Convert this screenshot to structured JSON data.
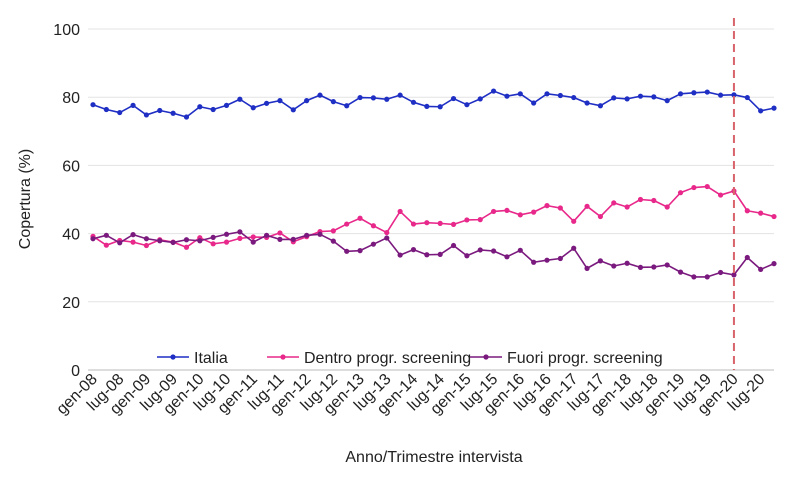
{
  "chart_data": {
    "type": "line",
    "xlabel": "Anno/Trimestre intervista",
    "ylabel": "Copertura (%)",
    "ylim": [
      0,
      100
    ],
    "yticks": [
      0,
      20,
      40,
      60,
      80,
      100
    ],
    "grid": true,
    "legend_position": "bottom-center",
    "x": [
      "gen-08",
      "apr-08",
      "lug-08",
      "ott-08",
      "gen-09",
      "apr-09",
      "lug-09",
      "ott-09",
      "gen-10",
      "apr-10",
      "lug-10",
      "ott-10",
      "gen-11",
      "apr-11",
      "lug-11",
      "ott-11",
      "gen-12",
      "apr-12",
      "lug-12",
      "ott-12",
      "gen-13",
      "apr-13",
      "lug-13",
      "ott-13",
      "gen-14",
      "apr-14",
      "lug-14",
      "ott-14",
      "gen-15",
      "apr-15",
      "lug-15",
      "ott-15",
      "gen-16",
      "apr-16",
      "lug-16",
      "ott-16",
      "gen-17",
      "apr-17",
      "lug-17",
      "ott-17",
      "gen-18",
      "apr-18",
      "lug-18",
      "ott-18",
      "gen-19",
      "apr-19",
      "lug-19",
      "ott-19",
      "gen-20",
      "apr-20",
      "lug-20",
      "ott-20"
    ],
    "xtick_labels": [
      "gen-08",
      "lug-08",
      "gen-09",
      "lug-09",
      "gen-10",
      "lug-10",
      "gen-11",
      "lug-11",
      "gen-12",
      "lug-12",
      "gen-13",
      "lug-13",
      "gen-14",
      "lug-14",
      "gen-15",
      "lug-15",
      "gen-16",
      "lug-16",
      "gen-17",
      "lug-17",
      "gen-18",
      "lug-18",
      "gen-19",
      "lug-19",
      "gen-20",
      "lug-20"
    ],
    "vline": {
      "x": "gen-20",
      "color": "#d9636b",
      "style": "dashed"
    },
    "series": [
      {
        "name": "Italia",
        "color": "#1f2fc4",
        "values": [
          77.8,
          76.4,
          75.5,
          77.6,
          74.8,
          76.1,
          75.3,
          74.2,
          77.2,
          76.4,
          77.6,
          79.4,
          76.9,
          78.2,
          79.0,
          76.3,
          79.0,
          80.6,
          78.7,
          77.5,
          79.9,
          79.8,
          79.4,
          80.6,
          78.5,
          77.3,
          77.2,
          79.6,
          77.8,
          79.5,
          81.8,
          80.3,
          81.0,
          78.3,
          81.0,
          80.5,
          79.9,
          78.3,
          77.5,
          79.8,
          79.5,
          80.3,
          80.1,
          79.0,
          81.0,
          81.3,
          81.5,
          80.6,
          80.7,
          79.9,
          76.0,
          76.8
        ]
      },
      {
        "name": "Dentro progr. screening",
        "color": "#e8288a",
        "values": [
          39.2,
          36.6,
          38.0,
          37.5,
          36.5,
          38.2,
          37.5,
          36.0,
          38.8,
          37.0,
          37.5,
          38.6,
          39.0,
          38.9,
          40.2,
          37.6,
          39.1,
          40.6,
          40.8,
          42.8,
          44.5,
          42.3,
          40.3,
          46.5,
          42.8,
          43.2,
          43.0,
          42.7,
          44.0,
          44.1,
          46.5,
          46.8,
          45.5,
          46.3,
          48.2,
          47.5,
          43.6,
          48.0,
          45.0,
          49.0,
          47.8,
          50.0,
          49.7,
          47.8,
          52.0,
          53.5,
          53.8,
          51.3,
          52.5,
          46.7,
          46.0,
          45.0
        ]
      },
      {
        "name": "Fuori progr. screening",
        "color": "#7b1a7e",
        "values": [
          38.5,
          39.5,
          37.3,
          39.7,
          38.5,
          37.9,
          37.4,
          38.2,
          37.9,
          38.9,
          39.8,
          40.5,
          37.5,
          39.5,
          38.3,
          38.3,
          39.5,
          39.8,
          37.8,
          34.8,
          35.0,
          36.9,
          38.7,
          33.7,
          35.3,
          33.8,
          33.9,
          36.5,
          33.5,
          35.2,
          34.9,
          33.2,
          35.1,
          31.6,
          32.2,
          32.7,
          35.7,
          29.8,
          32.0,
          30.5,
          31.3,
          30.1,
          30.2,
          30.8,
          28.7,
          27.3,
          27.3,
          28.6,
          27.9,
          33.0,
          29.5,
          31.2
        ]
      }
    ]
  }
}
